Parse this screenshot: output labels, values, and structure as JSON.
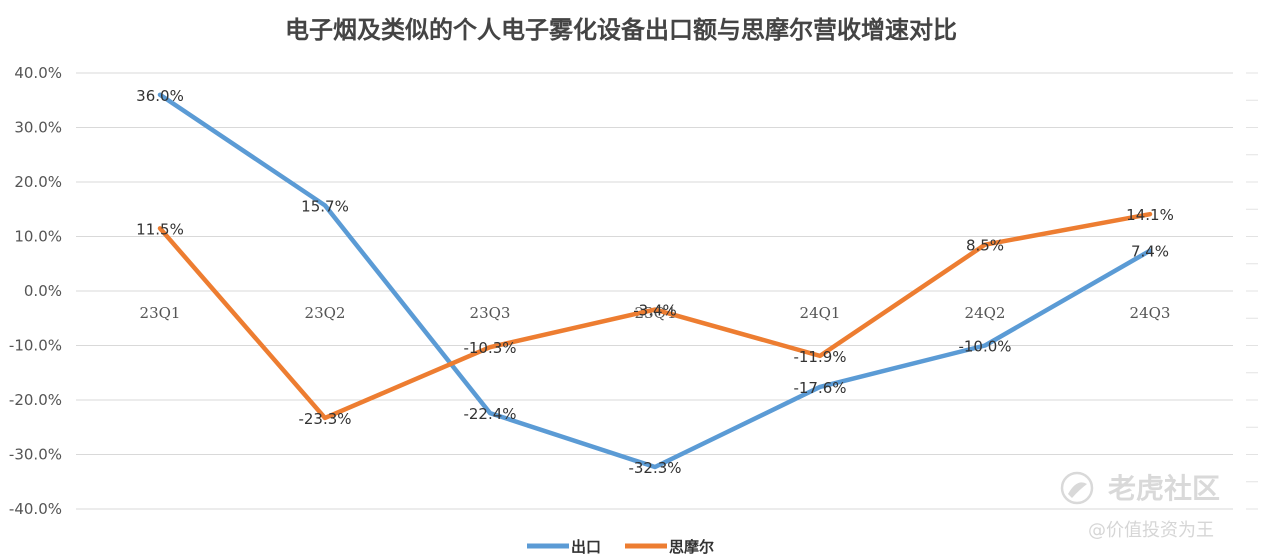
{
  "chart_data": {
    "type": "line",
    "title": "电子烟及类似的个人电子雾化设备出口额与思摩尔营收增速对比",
    "categories": [
      "23Q1",
      "23Q2",
      "23Q3",
      "23Q4",
      "24Q1",
      "24Q2",
      "24Q3"
    ],
    "y_tick_labels": [
      "40.0%",
      "30.0%",
      "20.0%",
      "10.0%",
      "0.0%",
      "-10.0%",
      "-20.0%",
      "-30.0%",
      "-40.0%"
    ],
    "ylim": [
      -40,
      40
    ],
    "grid": true,
    "legend_position": "bottom",
    "series": [
      {
        "name": "出口",
        "color": "#5b9bd5",
        "values": [
          36.0,
          15.7,
          -22.4,
          -32.3,
          -17.6,
          -10.0,
          7.4
        ],
        "labels": [
          "36.0%",
          "15.7%",
          "-22.4%",
          "-32.3%",
          "-17.6%",
          "-10.0%",
          "7.4%"
        ]
      },
      {
        "name": "思摩尔",
        "color": "#ed7d31",
        "values": [
          11.5,
          -23.3,
          -10.3,
          -3.4,
          -11.9,
          8.5,
          14.1
        ],
        "labels": [
          "11.5%",
          "-23.3%",
          "-10.3%",
          "-3.4%",
          "-11.9%",
          "8.5%",
          "14.1%"
        ]
      }
    ]
  },
  "watermark": {
    "brand": "老虎社区",
    "handle": "@价值投资为王"
  }
}
